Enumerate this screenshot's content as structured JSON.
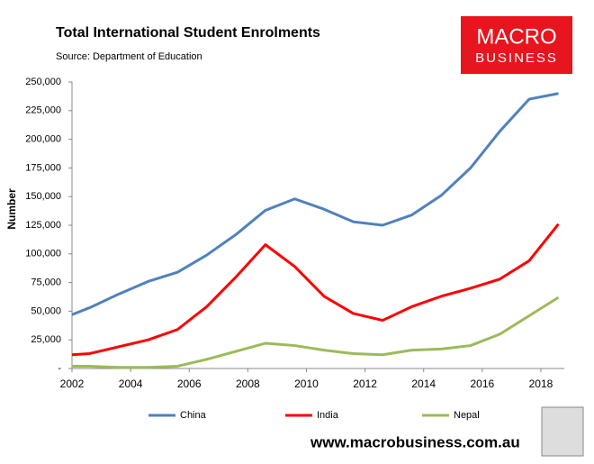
{
  "chart_data": {
    "type": "line",
    "title": "Total International Student Enrolments",
    "subtitle": "Source: Department of Education",
    "y_label": "Number",
    "logo": [
      "MACRO",
      "BUSINESS"
    ],
    "footer": "www.macrobusiness.com.au",
    "x": [
      2002,
      2002.6,
      2003.6,
      2004.6,
      2005.6,
      2006.6,
      2007.6,
      2008.6,
      2009.6,
      2010.6,
      2011.6,
      2012.6,
      2013.6,
      2014.6,
      2015.6,
      2016.6,
      2017.6,
      2018.6
    ],
    "series": [
      {
        "name": "China",
        "color": "#4f81bd",
        "values": [
          47000,
          53000,
          65000,
          76000,
          84000,
          99000,
          117000,
          138000,
          148000,
          139000,
          128000,
          125000,
          134000,
          151000,
          175000,
          207000,
          235000,
          240000
        ]
      },
      {
        "name": "India",
        "color": "#ff0000",
        "values": [
          12000,
          13000,
          19000,
          25000,
          34000,
          54000,
          80000,
          108000,
          89000,
          63000,
          48000,
          42000,
          54000,
          63000,
          70000,
          78000,
          94000,
          126000
        ]
      },
      {
        "name": "Nepal",
        "color": "#9bbb59",
        "values": [
          2000,
          2000,
          1000,
          1000,
          2000,
          8000,
          15000,
          22000,
          20000,
          16000,
          13000,
          12000,
          16000,
          17000,
          20000,
          30000,
          46000,
          62000
        ]
      }
    ],
    "xlim": [
      2002,
      2018.8
    ],
    "xticks": [
      2002,
      2004,
      2006,
      2008,
      2010,
      2012,
      2014,
      2016,
      2018
    ],
    "ylim": [
      0,
      250000
    ],
    "yticks": [
      {
        "value": 0,
        "label": "-"
      },
      {
        "value": 25000,
        "label": "25,000"
      },
      {
        "value": 50000,
        "label": "50,000"
      },
      {
        "value": 75000,
        "label": "75,000"
      },
      {
        "value": 100000,
        "label": "100,000"
      },
      {
        "value": 125000,
        "label": "125,000"
      },
      {
        "value": 150000,
        "label": "150,000"
      },
      {
        "value": 175000,
        "label": "175,000"
      },
      {
        "value": 200000,
        "label": "200,000"
      },
      {
        "value": 225000,
        "label": "225,000"
      },
      {
        "value": 250000,
        "label": "250,000"
      }
    ],
    "legend": "bottom"
  }
}
